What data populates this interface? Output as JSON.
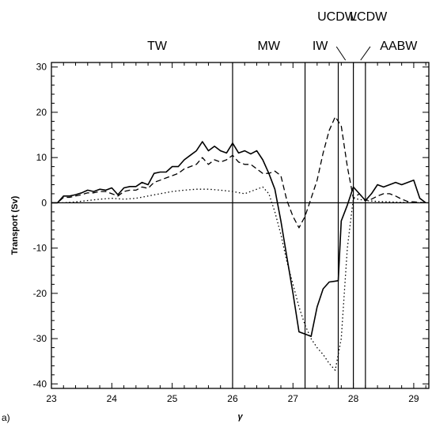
{
  "chart_data": {
    "type": "line",
    "panel_label": "a)",
    "xlabel": "γ",
    "ylabel": "Transport (Sv)",
    "xlim": [
      23,
      29.25
    ],
    "ylim": [
      -41,
      31
    ],
    "x_ticks": [
      23,
      24,
      25,
      26,
      27,
      28,
      29
    ],
    "y_ticks": [
      -40,
      -30,
      -20,
      -10,
      0,
      10,
      20,
      30
    ],
    "zero_line": true,
    "boundaries": [
      26.0,
      27.2,
      27.75,
      28.0,
      28.2
    ],
    "water_masses": [
      {
        "label": "TW",
        "x": 24.75,
        "row": "low"
      },
      {
        "label": "MW",
        "x": 26.6,
        "row": "low"
      },
      {
        "label": "IW",
        "x": 27.45,
        "row": "low"
      },
      {
        "label": "UCDW",
        "x": 27.73,
        "row": "high"
      },
      {
        "label": "LCDW",
        "x": 28.25,
        "row": "high"
      },
      {
        "label": "AABW",
        "x": 28.75,
        "row": "low"
      }
    ],
    "label_pointers": [
      {
        "from": [
          27.72,
          34.5
        ],
        "to": [
          27.87,
          31.5
        ]
      },
      {
        "from": [
          28.28,
          34.5
        ],
        "to": [
          28.12,
          31.5
        ]
      }
    ],
    "series": [
      {
        "style": "solid",
        "x": [
          23.0,
          23.1,
          23.2,
          23.3,
          23.4,
          23.5,
          23.6,
          23.7,
          23.8,
          23.9,
          24.0,
          24.1,
          24.2,
          24.3,
          24.4,
          24.5,
          24.6,
          24.7,
          24.8,
          24.9,
          25.0,
          25.1,
          25.2,
          25.3,
          25.4,
          25.5,
          25.6,
          25.7,
          25.8,
          25.9,
          26.0,
          26.1,
          26.2,
          26.3,
          26.4,
          26.5,
          26.6,
          26.7,
          26.8,
          26.9,
          27.0,
          27.1,
          27.2,
          27.3,
          27.4,
          27.5,
          27.6,
          27.7,
          27.75,
          27.8,
          27.9,
          28.0,
          28.1,
          28.2,
          28.3,
          28.4,
          28.5,
          28.6,
          28.7,
          28.8,
          28.9,
          29.0,
          29.1,
          29.2
        ],
        "y": [
          0,
          0,
          1.5,
          1.5,
          1.8,
          2.2,
          2.8,
          2.5,
          3.0,
          2.8,
          3.3,
          1.8,
          3.3,
          3.6,
          3.6,
          4.5,
          4.0,
          6.5,
          6.8,
          6.8,
          8.0,
          8.0,
          9.5,
          10.5,
          11.5,
          13.5,
          11.5,
          12.5,
          11.5,
          11.0,
          13.2,
          11.0,
          11.5,
          10.8,
          11.5,
          9.5,
          6.5,
          3.0,
          -4.0,
          -12.0,
          -20.0,
          -28.5,
          -29.0,
          -29.5,
          -23.0,
          -19.0,
          -17.5,
          -17.3,
          -17.2,
          -4.0,
          -0.5,
          3.5,
          2.0,
          0.5,
          2.0,
          4.0,
          3.5,
          4.0,
          4.5,
          4.0,
          4.5,
          5.0,
          1.0,
          0
        ]
      },
      {
        "style": "dashed",
        "x": [
          23.0,
          23.1,
          23.2,
          23.3,
          23.4,
          23.5,
          23.6,
          23.7,
          23.8,
          23.9,
          24.0,
          24.1,
          24.2,
          24.3,
          24.4,
          24.5,
          24.6,
          24.7,
          24.8,
          24.9,
          25.0,
          25.1,
          25.2,
          25.3,
          25.4,
          25.5,
          25.6,
          25.7,
          25.8,
          25.9,
          26.0,
          26.1,
          26.2,
          26.3,
          26.4,
          26.5,
          26.6,
          26.7,
          26.8,
          26.9,
          27.0,
          27.1,
          27.2,
          27.3,
          27.4,
          27.5,
          27.6,
          27.7,
          27.8,
          27.9,
          28.0,
          28.1,
          28.2,
          28.3,
          28.4,
          28.5,
          28.6,
          28.7,
          28.8,
          28.9,
          29.0,
          29.1,
          29.2
        ],
        "y": [
          0,
          0,
          1.2,
          1.2,
          1.5,
          1.8,
          2.2,
          2.2,
          2.5,
          2.5,
          2.0,
          1.5,
          2.5,
          2.8,
          2.8,
          3.5,
          3.2,
          4.5,
          5.0,
          5.5,
          6.0,
          6.5,
          7.5,
          8.0,
          8.5,
          10.0,
          8.5,
          9.5,
          9.0,
          9.5,
          10.5,
          9.0,
          8.5,
          8.5,
          7.5,
          6.5,
          6.5,
          7.0,
          6.0,
          0.5,
          -3.0,
          -5.5,
          -3.0,
          1.0,
          5.0,
          11.0,
          16.0,
          19.0,
          17.0,
          8.0,
          1.0,
          2.0,
          0.5,
          0.8,
          1.5,
          2.0,
          2.0,
          1.5,
          0.8,
          0.3,
          0.2,
          0.1,
          0
        ]
      },
      {
        "style": "dotted",
        "x": [
          23.0,
          23.2,
          23.4,
          23.6,
          23.8,
          24.0,
          24.2,
          24.4,
          24.6,
          24.8,
          25.0,
          25.2,
          25.4,
          25.6,
          25.8,
          26.0,
          26.2,
          26.4,
          26.5,
          26.6,
          26.7,
          26.8,
          26.9,
          27.0,
          27.1,
          27.2,
          27.3,
          27.4,
          27.5,
          27.6,
          27.7,
          27.8,
          27.9,
          28.0,
          28.2,
          28.4,
          28.6,
          28.8,
          29.0,
          29.2
        ],
        "y": [
          0,
          0,
          0.2,
          0.5,
          0.8,
          1.0,
          0.8,
          1.0,
          1.5,
          2.0,
          2.5,
          2.8,
          3.0,
          3.0,
          2.8,
          2.5,
          2.0,
          3.0,
          3.5,
          2.0,
          -2.0,
          -7.0,
          -13.0,
          -18.0,
          -23.0,
          -27.0,
          -30.0,
          -32.0,
          -33.5,
          -35.5,
          -37.0,
          -30.0,
          -10.0,
          1.0,
          0.5,
          0.3,
          0.2,
          0.1,
          0.0,
          0.0
        ]
      }
    ]
  }
}
